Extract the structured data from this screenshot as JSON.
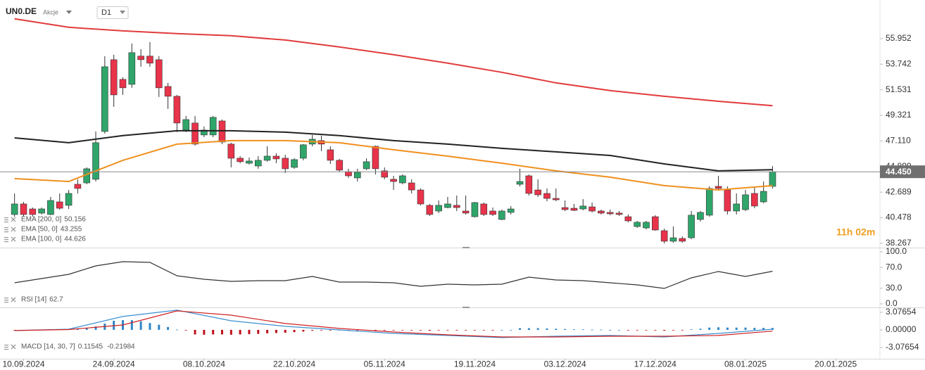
{
  "header": {
    "symbol": "UN0.DE",
    "type": "Akcje",
    "timeframe": "D1"
  },
  "countdown": "11h 02m",
  "chart_data": [
    {
      "type": "candlestick",
      "up_color": "#2fa56a",
      "down_color": "#e8334a",
      "xlim": [
        -1.3,
        95.9
      ],
      "xticks": [
        {
          "value": 1,
          "label": "10.09.2024"
        },
        {
          "value": 11,
          "label": "24.09.2024"
        },
        {
          "value": 21,
          "label": "08.10.2024"
        },
        {
          "value": 31,
          "label": "22.10.2024"
        },
        {
          "value": 41,
          "label": "05.11.2024"
        },
        {
          "value": 51,
          "label": "19.11.2024"
        },
        {
          "value": 61,
          "label": "03.12.2024"
        },
        {
          "value": 71,
          "label": "17.12.2024"
        },
        {
          "value": 81,
          "label": "08.01.2025"
        },
        {
          "value": 91,
          "label": "20.01.2025"
        }
      ],
      "ylim": [
        37.9,
        58.8
      ],
      "yticks": [
        55.952,
        53.742,
        51.531,
        49.321,
        {
          "value": 47.11,
          "label": "47.110"
        },
        44.899,
        42.689,
        40.478,
        38.267
      ],
      "current_price": {
        "value": 44.45,
        "label": "44.450"
      },
      "open": [
        40.76,
        41.67,
        41.24,
        40.88,
        40.76,
        41.85,
        41.55,
        43.37,
        43.49,
        43.8,
        47.93,
        54.13,
        52.43,
        52.0,
        54.44,
        54.44,
        54.13,
        51.82,
        50.97,
        48.05,
        48.66,
        47.63,
        47.63,
        48.84,
        46.84,
        45.62,
        45.19,
        44.95,
        45.44,
        45.8,
        45.62,
        44.83,
        45.62,
        46.84,
        47.14,
        46.35,
        45.44,
        44.46,
        43.92,
        44.71,
        46.65,
        44.53,
        43.8,
        43.49,
        43.49,
        42.88,
        41.55,
        41.06,
        41.36,
        41.55,
        41.06,
        40.57,
        41.67,
        41.06,
        40.33,
        40.94,
        43.37,
        44.1,
        42.88,
        42.58,
        42.15,
        41.36,
        41.3,
        41.24,
        41.42,
        41.06,
        40.94,
        40.88,
        40.57,
        39.72,
        39.6,
        40.57,
        39.36,
        38.45,
        38.69,
        38.75,
        40.33,
        40.7,
        43.19,
        42.88,
        41.06,
        41.18,
        42.58,
        41.85,
        43.19
      ],
      "high": [
        42.58,
        41.85,
        41.36,
        41.36,
        42.28,
        42.58,
        42.88,
        43.8,
        44.83,
        47.93,
        54.44,
        54.56,
        52.61,
        55.53,
        55.04,
        55.65,
        54.44,
        52.13,
        51.09,
        49.27,
        49.27,
        48.36,
        49.27,
        48.96,
        46.96,
        45.8,
        45.68,
        45.8,
        46.65,
        46.05,
        45.92,
        45.62,
        46.84,
        47.63,
        47.57,
        46.65,
        45.56,
        44.71,
        44.71,
        45.62,
        46.71,
        44.83,
        44.1,
        44.22,
        43.8,
        43.01,
        41.67,
        41.97,
        42.28,
        42.4,
        42.4,
        41.85,
        41.79,
        41.36,
        41.18,
        41.49,
        44.71,
        44.22,
        43.8,
        43.01,
        43.01,
        41.97,
        41.67,
        42.09,
        41.79,
        41.18,
        41.18,
        41.06,
        40.76,
        40.21,
        40.21,
        40.7,
        39.54,
        39.72,
        38.87,
        41.06,
        41.06,
        43.19,
        44.1,
        43.19,
        42.58,
        42.88,
        43.19,
        43.61,
        44.95
      ],
      "low": [
        40.57,
        40.57,
        40.57,
        40.76,
        40.7,
        41.18,
        41.24,
        42.58,
        43.37,
        43.61,
        47.75,
        50.06,
        51.09,
        51.7,
        53.52,
        53.52,
        50.91,
        49.88,
        47.87,
        47.87,
        46.71,
        47.44,
        47.44,
        46.84,
        44.83,
        45.19,
        45.07,
        44.71,
        45.32,
        45.19,
        44.34,
        44.71,
        45.44,
        46.65,
        46.23,
        45.13,
        44.46,
        43.92,
        43.61,
        44.59,
        44.22,
        43.8,
        42.88,
        43.37,
        42.58,
        41.55,
        40.63,
        40.88,
        41.3,
        41.06,
        40.76,
        40.51,
        40.63,
        40.63,
        40.27,
        40.76,
        43.19,
        42.4,
        42.28,
        41.91,
        41.91,
        41.06,
        41.06,
        41.12,
        40.94,
        40.76,
        40.7,
        40.63,
        40.09,
        39.6,
        39.48,
        39.36,
        38.26,
        38.32,
        38.32,
        38.63,
        40.15,
        40.57,
        42.88,
        40.76,
        40.76,
        41.06,
        41.3,
        41.73,
        43.01
      ],
      "close": [
        41.67,
        40.76,
        40.76,
        41.24,
        41.97,
        41.3,
        42.58,
        43.01,
        44.71,
        46.96,
        53.52,
        51.09,
        51.7,
        54.74,
        54.13,
        53.83,
        51.7,
        50.97,
        48.66,
        48.96,
        46.84,
        48.05,
        49.15,
        47.02,
        45.62,
        45.32,
        45.38,
        45.44,
        45.8,
        45.56,
        44.71,
        45.5,
        46.78,
        47.26,
        46.84,
        45.44,
        44.59,
        44.1,
        44.4,
        45.32,
        44.71,
        43.98,
        43.61,
        44.1,
        42.88,
        41.67,
        40.76,
        41.55,
        41.67,
        41.36,
        40.88,
        41.79,
        40.76,
        40.76,
        41.06,
        41.24,
        43.61,
        42.58,
        42.46,
        42.15,
        42.03,
        41.18,
        41.12,
        41.49,
        41.06,
        40.88,
        40.82,
        40.76,
        40.21,
        40.09,
        40.09,
        39.42,
        38.45,
        38.75,
        38.45,
        40.7,
        40.94,
        43.01,
        43.01,
        41.06,
        41.67,
        42.46,
        41.49,
        42.76,
        44.45
      ],
      "series": [
        {
          "name": "EMA [200, 0]",
          "color": "#e23b3b",
          "x": [
            0,
            6,
            12,
            18,
            24,
            30,
            36,
            42,
            48,
            54,
            60,
            66,
            72,
            78,
            84
          ],
          "values": [
            57.66,
            56.93,
            56.62,
            56.38,
            56.2,
            55.83,
            55.23,
            54.56,
            53.83,
            53.04,
            52.13,
            51.46,
            50.97,
            50.54,
            50.156
          ]
        },
        {
          "name": "EMA [50, 0]",
          "color": "#f0901e",
          "x": [
            0,
            6,
            12,
            18,
            24,
            30,
            36,
            42,
            48,
            54,
            60,
            66,
            72,
            78,
            84
          ],
          "values": [
            43.86,
            43.61,
            45.44,
            46.84,
            47.14,
            47.14,
            46.96,
            46.35,
            45.8,
            45.19,
            44.53,
            43.98,
            43.25,
            42.88,
            43.255
          ]
        },
        {
          "name": "EMA [100, 0]",
          "color": "#222222",
          "x": [
            0,
            6,
            12,
            18,
            24,
            30,
            36,
            42,
            48,
            54,
            60,
            66,
            72,
            78,
            84
          ],
          "values": [
            47.38,
            46.96,
            47.57,
            47.99,
            47.99,
            47.87,
            47.57,
            47.14,
            46.84,
            46.47,
            46.17,
            45.86,
            45.13,
            44.53,
            44.626
          ]
        }
      ]
    },
    {
      "type": "line",
      "ylim": [
        -6.8,
        106.8
      ],
      "yticks": [
        {
          "value": 100,
          "label": "100.0"
        },
        {
          "value": 70,
          "label": "70.0"
        },
        {
          "value": 30,
          "label": "30.0"
        },
        {
          "value": 0,
          "label": "0.0"
        }
      ],
      "series": [
        {
          "name": "RSI [14]",
          "color": "#333333",
          "x": [
            0,
            3,
            6,
            9,
            12,
            15,
            18,
            21,
            24,
            27,
            30,
            33,
            36,
            39,
            42,
            45,
            48,
            51,
            54,
            57,
            60,
            63,
            66,
            69,
            72,
            75,
            78,
            81,
            84
          ],
          "values": [
            40.5,
            48.6,
            56.8,
            73.0,
            81.1,
            79.7,
            54.1,
            47.3,
            43.2,
            44.6,
            44.6,
            52.7,
            41.9,
            41.9,
            40.5,
            33.8,
            37.8,
            36.5,
            37.8,
            51.4,
            45.9,
            44.6,
            40.5,
            36.5,
            29.7,
            50.0,
            62.2,
            52.7,
            62.7
          ]
        }
      ]
    },
    {
      "type": "macd",
      "name": "MACD [14, 30, 7]",
      "ylim": [
        -5.05,
        3.81
      ],
      "yticks": [
        3.07654,
        {
          "value": 0,
          "label": "0.00000"
        },
        -3.07654
      ],
      "histogram": {
        "up_color": "#2e86c8",
        "down_color": "#c0101c",
        "values": [
          -0.1,
          -0.1,
          -0.1,
          0.05,
          0.05,
          0.1,
          0.1,
          0.2,
          0.35,
          0.6,
          1.1,
          1.6,
          1.7,
          1.7,
          1.5,
          1.2,
          0.9,
          0.5,
          0.05,
          -0.1,
          -0.8,
          -0.85,
          -0.8,
          -0.8,
          -0.85,
          -0.8,
          -0.75,
          -0.7,
          -0.6,
          -0.55,
          -0.5,
          -0.4,
          -0.3,
          -0.15,
          -0.1,
          -0.1,
          -0.1,
          -0.1,
          -0.1,
          -0.05,
          -0.1,
          -0.1,
          -0.1,
          -0.1,
          -0.1,
          -0.1,
          -0.15,
          -0.1,
          -0.1,
          -0.1,
          -0.1,
          -0.1,
          -0.05,
          -0.05,
          0,
          0,
          0.3,
          0.3,
          0.3,
          0.25,
          0.2,
          0.15,
          0.1,
          0.1,
          0.05,
          0.05,
          0,
          0,
          -0.05,
          -0.1,
          -0.1,
          -0.1,
          -0.15,
          -0.1,
          -0.05,
          0.1,
          0.2,
          0.4,
          0.45,
          0.4,
          0.4,
          0.4,
          0.35,
          0.35,
          0.34
        ]
      },
      "series": [
        {
          "color": "#3a8fd0",
          "x": [
            0,
            6,
            12,
            18,
            24,
            30,
            36,
            42,
            48,
            54,
            60,
            66,
            72,
            78,
            84
          ],
          "values": [
            -0.12,
            0.12,
            2.34,
            3.45,
            1.6,
            0.62,
            0,
            -0.62,
            -0.98,
            -1.35,
            -1.11,
            -0.98,
            -1.23,
            -0.62,
            0.11545
          ]
        },
        {
          "color": "#d02020",
          "x": [
            0,
            6,
            12,
            18,
            24,
            30,
            36,
            42,
            48,
            54,
            60,
            66,
            72,
            78,
            84
          ],
          "values": [
            -0.12,
            0.06,
            0.86,
            3.32,
            2.58,
            1.11,
            0.25,
            -0.37,
            -0.86,
            -1.23,
            -1.23,
            -1.11,
            -1.11,
            -0.98,
            -0.21984
          ]
        }
      ]
    }
  ]
}
